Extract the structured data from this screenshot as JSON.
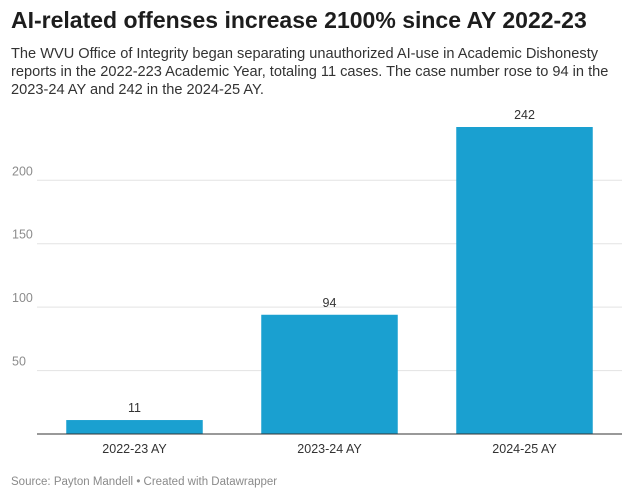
{
  "header": {
    "title": "AI-related offenses increase 2100% since AY 2022-23",
    "description": "The WVU Office of Integrity began separating unauthorized AI-use in Academic Dishonesty reports in the 2022-223 Academic Year, totaling 11 cases. The case number rose to 94 in the 2023-24 AY and 242 in the 2024-25 AY."
  },
  "footer": {
    "source": "Source: Payton Mandell",
    "separator": "•",
    "credit": "Created with Datawrapper"
  },
  "chart_data": {
    "type": "bar",
    "title": "AI-related offenses increase 2100% since AY 2022-23",
    "subtitle": "The WVU Office of Integrity began separating unauthorized AI-use in Academic Dishonesty reports in the 2022-223 Academic Year, totaling 11 cases. The case number rose to 94 in the 2023-24 AY and 242 in the 2024-25 AY.",
    "categories": [
      "2022-23 AY",
      "2023-24 AY",
      "2024-25 AY"
    ],
    "values": [
      11,
      94,
      242
    ],
    "data_labels": [
      "11",
      "94",
      "242"
    ],
    "xlabel": "",
    "ylabel": "",
    "ylim": [
      0,
      242
    ],
    "yticks": [
      50,
      100,
      150,
      200
    ],
    "grid": true,
    "legend": "none",
    "colors": {
      "bar": "#1aa0d0",
      "grid": "#e3e3e3",
      "axis": "#333333",
      "tick_label": "#8c8c8c",
      "category_label": "#333333",
      "value_label": "#333333"
    }
  }
}
